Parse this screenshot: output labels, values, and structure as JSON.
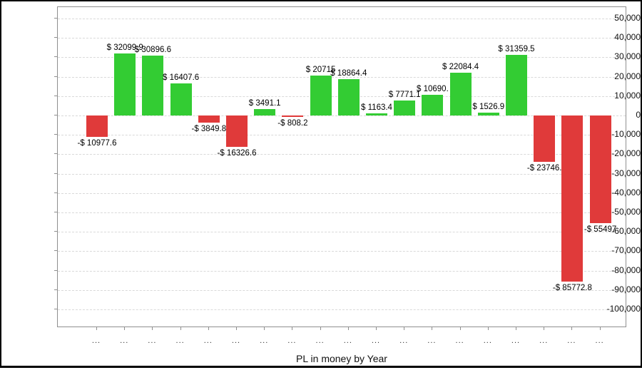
{
  "chart_data": {
    "type": "bar",
    "title": "PL in money by Year",
    "categories": [
      "...",
      "...",
      "...",
      "...",
      "...",
      "...",
      "...",
      "...",
      "...",
      "...",
      "...",
      "...",
      "...",
      "...",
      "...",
      "...",
      "...",
      "...",
      "..."
    ],
    "values": [
      -10977.6,
      32099.9,
      30896.6,
      16407.6,
      -3849.8,
      -16326.6,
      3491.1,
      -808.2,
      20715,
      18864.4,
      1163.4,
      7771.1,
      10690,
      22084.4,
      1526.9,
      31359.5,
      -23746,
      -85772.8,
      -55497
    ],
    "bar_labels": [
      "-$ 10977.6",
      "$ 32099.9",
      "$ 30896.6",
      "$ 16407.6",
      "-$ 3849.8",
      "-$ 16326.6",
      "$ 3491.1",
      "-$ 808.2",
      "$ 20715",
      "$ 18864.4",
      "$ 1163.4",
      "$ 7771.1",
      "$ 10690.",
      "$ 22084.4",
      "$ 1526.9",
      "$ 31359.5",
      "-$ 23746.",
      "-$ 85772.8",
      "-$ 55497"
    ],
    "xlabel": "",
    "ylabel": "",
    "ylim": [
      -100000,
      50000
    ],
    "y_ticks": [
      50000,
      40000,
      30000,
      20000,
      10000,
      0,
      -10000,
      -20000,
      -30000,
      -40000,
      -50000,
      -60000,
      -70000,
      -80000,
      -90000,
      -100000
    ],
    "y_tick_labels": [
      "50,000",
      "40,000",
      "30,000",
      "20,000",
      "10,000",
      "0",
      "-10,000",
      "-20,000",
      "-30,000",
      "-40,000",
      "-50,000",
      "-60,000",
      "-70,000",
      "-80,000",
      "-90,000",
      "-100,000"
    ],
    "grid": "horizontal dashed",
    "legend": "none",
    "colors": {
      "positive_bar": "#33CC33",
      "negative_bar": "#E03A3A",
      "gridline": "#d9d9d9",
      "frame": "#8f8f8f",
      "window_border": "#000000"
    }
  }
}
